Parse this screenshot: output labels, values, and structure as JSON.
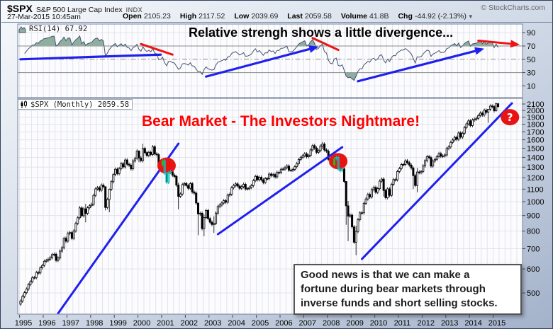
{
  "header": {
    "symbol": "$SPX",
    "name": "S&P 500 Large Cap Index",
    "exchange": "INDX",
    "copyright": "© StockCharts.com",
    "datetime": "27-Mar-2015 10:45am",
    "quote": [
      {
        "label": "Open",
        "value": "2105.23"
      },
      {
        "label": "High",
        "value": "2117.52"
      },
      {
        "label": "Low",
        "value": "2039.69"
      },
      {
        "label": "Last",
        "value": "2059.58"
      },
      {
        "label": "Volume",
        "value": "41.8B"
      },
      {
        "label": "Chg",
        "value": "-44.92 (-2.13%)"
      }
    ],
    "chg_arrow": "▼"
  },
  "icons": {
    "rsi_legend": "area-chart-icon",
    "main_legend": "candlestick-icon",
    "chg": "triangle-down-icon"
  },
  "rsi_panel": {
    "legend": "RSI(14) 67.92",
    "annotation": "Relative strengh shows a little divergence...",
    "axis_ticks": [
      90,
      70,
      50,
      30,
      10
    ],
    "overbought": 70,
    "midline": 50,
    "oversold": 30
  },
  "main_panel": {
    "legend": "$SPX (Monthly) 2059.58",
    "annotation_title": "Bear Market - The Investors Nightmare!",
    "annotation_box": [
      "Good news is that we can make a",
      "fortune during bear markets through",
      "inverse funds and short selling stocks."
    ],
    "axis_ticks": [
      2100,
      2000,
      1900,
      1800,
      1700,
      1600,
      1500,
      1400,
      1300,
      1200,
      1100,
      1000,
      900,
      800,
      700,
      600,
      500
    ],
    "question_mark": "?"
  },
  "x_axis": {
    "years": [
      1995,
      1996,
      1997,
      1998,
      1999,
      2000,
      2001,
      2002,
      2003,
      2004,
      2005,
      2006,
      2007,
      2008,
      2009,
      2010,
      2011,
      2012,
      2013,
      2014,
      2015
    ]
  },
  "colors": {
    "trend_blue": "#2020ee",
    "trend_red": "#ee1414",
    "annotation_red": "#ff0000",
    "rsi_line": "#44536e",
    "rsi_fill": "#8fae9f",
    "grid": "#e2e4eb",
    "level_line": "#8a8a8a",
    "candle_up": "#ffffff",
    "candle_down": "#000000",
    "highlight_cyan": "#00cccc",
    "highlight_green": "#22bb22",
    "event_circle": "#e81414"
  },
  "chart_data": {
    "type": "candlestick",
    "timeframe": "monthly",
    "scale": "log",
    "start_month": "1994-01",
    "visible_start": "1995-01",
    "note": "closes are monthly S&P 500 values read off the chart; 1994 values are RSI warm-up only",
    "closes": [
      472,
      467,
      446,
      451,
      457,
      444,
      458,
      475,
      463,
      472,
      454,
      459,
      470,
      487,
      501,
      515,
      533,
      545,
      562,
      562,
      584,
      582,
      605,
      616,
      636,
      640,
      646,
      654,
      669,
      671,
      640,
      652,
      687,
      705,
      757,
      741,
      786,
      791,
      757,
      801,
      848,
      885,
      954,
      899,
      947,
      915,
      955,
      970,
      980,
      1049,
      1102,
      1112,
      1091,
      1134,
      1121,
      957,
      1017,
      1099,
      1164,
      1229,
      1280,
      1238,
      1286,
      1335,
      1302,
      1373,
      1329,
      1320,
      1283,
      1363,
      1389,
      1469,
      1394,
      1366,
      1499,
      1452,
      1421,
      1455,
      1431,
      1518,
      1437,
      1429,
      1315,
      1320,
      1366,
      1240,
      1160,
      1249,
      1256,
      1224,
      1211,
      1134,
      1041,
      1060,
      1139,
      1148,
      1130,
      1107,
      1147,
      1077,
      1067,
      990,
      911,
      916,
      815,
      886,
      936,
      880,
      856,
      841,
      848,
      917,
      964,
      975,
      990,
      1008,
      996,
      1051,
      1058,
      1112,
      1131,
      1145,
      1126,
      1107,
      1121,
      1141,
      1102,
      1104,
      1115,
      1130,
      1174,
      1212,
      1181,
      1204,
      1181,
      1157,
      1192,
      1191,
      1234,
      1220,
      1229,
      1207,
      1249,
      1248,
      1280,
      1281,
      1295,
      1311,
      1270,
      1270,
      1277,
      1304,
      1336,
      1378,
      1401,
      1418,
      1438,
      1407,
      1421,
      1482,
      1531,
      1503,
      1455,
      1474,
      1527,
      1549,
      1481,
      1468,
      1379,
      1331,
      1323,
      1386,
      1400,
      1280,
      1267,
      1283,
      1166,
      969,
      896,
      903,
      826,
      735,
      798,
      873,
      919,
      919,
      987,
      1021,
      1057,
      1036,
      1096,
      1115,
      1074,
      1104,
      1169,
      1187,
      1089,
      1031,
      1102,
      1049,
      1141,
      1183,
      1181,
      1258,
      1286,
      1327,
      1326,
      1364,
      1345,
      1321,
      1292,
      1219,
      1131,
      1253,
      1247,
      1258,
      1312,
      1366,
      1408,
      1398,
      1310,
      1362,
      1379,
      1407,
      1441,
      1412,
      1416,
      1426,
      1498,
      1515,
      1569,
      1598,
      1631,
      1606,
      1686,
      1633,
      1682,
      1757,
      1806,
      1848,
      1783,
      1859,
      1872,
      1884,
      1924,
      1960,
      1931,
      2003,
      1972,
      2018,
      2068,
      2059,
      1995,
      2104.5,
      2059.58
    ],
    "open_rule": "previous_close",
    "hl_overrides": {
      "1997-10": [
        983,
        855
      ],
      "1998-08": [
        1121,
        936
      ],
      "1998-10": [
        1105,
        923
      ],
      "2000-01": [
        1478,
        1350
      ],
      "2000-03": [
        1553,
        1347
      ],
      "2001-09": [
        1155,
        944
      ],
      "2002-07": [
        990,
        775
      ],
      "2002-10": [
        907,
        769
      ],
      "2003-03": [
        895,
        789
      ],
      "2007-10": [
        1576,
        1489
      ],
      "2008-10": [
        1168,
        839
      ],
      "2008-11": [
        1006,
        741
      ],
      "2009-03": [
        832,
        666
      ],
      "2010-05": [
        1205,
        1040
      ],
      "2011-08": [
        1307,
        1101
      ],
      "2011-10": [
        1292,
        1074
      ],
      "2014-10": [
        2018,
        1820
      ],
      "2015-02": [
        2119.59,
        1980.9
      ],
      "2015-03": [
        2117.52,
        2039.69
      ]
    },
    "rsi_period": 14,
    "price_trendlines": [
      {
        "from": {
          "month": "1996-08",
          "price": 428
        },
        "to": {
          "month": "2001-09",
          "price": 1554
        }
      },
      {
        "from": {
          "month": "2003-05",
          "price": 781
        },
        "to": {
          "month": "2008-08",
          "price": 1513
        }
      },
      {
        "from": {
          "month": "2009-06",
          "price": 647
        },
        "to": {
          "month": "2015-10",
          "price": 2112
        }
      }
    ],
    "rsi_annotation_lines": [
      {
        "color": "blue",
        "arrow": false,
        "from": {
          "month": "1995-01",
          "rsi": 50
        },
        "to": {
          "month": "2000-12",
          "rsi": 57
        }
      },
      {
        "color": "red",
        "arrow": false,
        "from": {
          "month": "2000-02",
          "rsi": 73
        },
        "to": {
          "month": "2001-06",
          "rsi": 57
        }
      },
      {
        "color": "blue",
        "arrow": true,
        "from": {
          "month": "2002-11",
          "rsi": 24
        },
        "to": {
          "month": "2007-08",
          "rsi": 69
        }
      },
      {
        "color": "red",
        "arrow": false,
        "from": {
          "month": "2007-05",
          "rsi": 82
        },
        "to": {
          "month": "2008-06",
          "rsi": 64
        }
      },
      {
        "color": "blue",
        "arrow": true,
        "from": {
          "month": "2009-04",
          "rsi": 17
        },
        "to": {
          "month": "2014-08",
          "rsi": 66
        }
      },
      {
        "color": "red",
        "arrow": true,
        "from": {
          "month": "2014-05",
          "rsi": 78
        },
        "to": {
          "month": "2016-02",
          "rsi": 72
        }
      }
    ],
    "event_circles": [
      {
        "month": "2001-03",
        "price": 1315
      },
      {
        "month": "2008-06",
        "price": 1360
      },
      {
        "month": "2015-09",
        "price": 1900,
        "label": "?"
      }
    ],
    "highlight_candles": [
      {
        "from": "2001-01",
        "to": "2001-05"
      },
      {
        "from": "2008-04",
        "to": "2008-08"
      }
    ]
  }
}
